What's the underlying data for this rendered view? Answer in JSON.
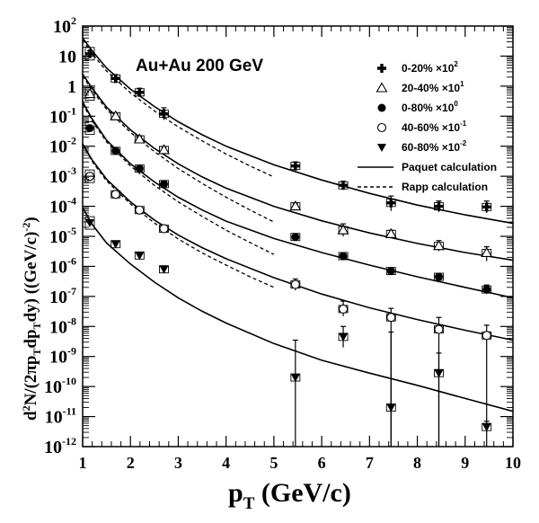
{
  "chart_data": {
    "type": "scatter",
    "title": "",
    "annotation": "Au+Au 200 GeV",
    "xlabel": {
      "main": "p",
      "sub": "T",
      "rest": " (GeV/c)"
    },
    "ylabel": {
      "parts": [
        {
          "t": "d",
          "s": "n"
        },
        {
          "t": "2",
          "s": "sup"
        },
        {
          "t": "N/(2π",
          "s": "n"
        },
        {
          "t": "p",
          "s": "n"
        },
        {
          "t": "T",
          "s": "sub"
        },
        {
          "t": "dp",
          "s": "n"
        },
        {
          "t": "T",
          "s": "sub"
        },
        {
          "t": "dy) ((GeV/c)",
          "s": "n"
        },
        {
          "t": "-2",
          "s": "sup"
        },
        {
          "t": ")",
          "s": "n"
        }
      ]
    },
    "xlim": [
      1,
      10
    ],
    "ylog": true,
    "ylim_exp": [
      -12,
      2
    ],
    "xticks": [
      "1",
      "2",
      "3",
      "4",
      "5",
      "6",
      "7",
      "8",
      "9",
      "10"
    ],
    "yticks": [
      {
        "base": "10",
        "exp": "2"
      },
      {
        "base": "10",
        "exp": ""
      },
      {
        "base": "1",
        "exp": ""
      },
      {
        "base": "10",
        "exp": "-1"
      },
      {
        "base": "10",
        "exp": "-2"
      },
      {
        "base": "10",
        "exp": "-3"
      },
      {
        "base": "10",
        "exp": "-4"
      },
      {
        "base": "10",
        "exp": "-5"
      },
      {
        "base": "10",
        "exp": "-6"
      },
      {
        "base": "10",
        "exp": "-7"
      },
      {
        "base": "10",
        "exp": "-8"
      },
      {
        "base": "10",
        "exp": "-9"
      },
      {
        "base": "10",
        "exp": "-10"
      },
      {
        "base": "10",
        "exp": "-11"
      },
      {
        "base": "10",
        "exp": "-12"
      }
    ],
    "legend_position": "top-right",
    "series": [
      {
        "name": "0-20%",
        "scale_base": "×10",
        "scale_exp": "2",
        "marker": "cross",
        "points": [
          {
            "x": 1.15,
            "y": 12,
            "lo": 9.5,
            "hi": 15
          },
          {
            "x": 1.69,
            "y": 1.8,
            "lo": 1.4,
            "hi": 2.4
          },
          {
            "x": 2.19,
            "y": 0.62,
            "lo": 0.48,
            "hi": 0.85
          },
          {
            "x": 2.7,
            "y": 0.12,
            "lo": 0.075,
            "hi": 0.19
          },
          {
            "x": 5.45,
            "y": 0.0022,
            "lo": 0.0017,
            "hi": 0.003
          },
          {
            "x": 6.45,
            "y": 0.0005,
            "lo": 0.00037,
            "hi": 0.00068
          },
          {
            "x": 7.45,
            "y": 0.00013,
            "lo": 7e-05,
            "hi": 0.00022
          },
          {
            "x": 8.45,
            "y": 0.0001,
            "lo": 6.5e-05,
            "hi": 0.00015
          },
          {
            "x": 9.45,
            "y": 9.5e-05,
            "lo": 6e-05,
            "hi": 0.00015
          }
        ]
      },
      {
        "name": "20-40%",
        "scale_base": "×10",
        "scale_exp": "1",
        "marker": "triangle-open",
        "points": [
          {
            "x": 1.15,
            "y": 0.55,
            "lo": 0.45,
            "hi": 0.68
          },
          {
            "x": 1.69,
            "y": 0.1,
            "lo": 0.085,
            "hi": 0.12
          },
          {
            "x": 2.19,
            "y": 0.017,
            "lo": 0.014,
            "hi": 0.021
          },
          {
            "x": 2.7,
            "y": 0.0075,
            "lo": 0.006,
            "hi": 0.0095
          },
          {
            "x": 5.45,
            "y": 0.0001,
            "lo": 8e-05,
            "hi": 0.00012
          },
          {
            "x": 6.45,
            "y": 1.6e-05,
            "lo": 1e-05,
            "hi": 2.6e-05
          },
          {
            "x": 7.45,
            "y": 1.2e-05,
            "lo": 9e-06,
            "hi": 1.6e-05
          },
          {
            "x": 8.45,
            "y": 4.8e-06,
            "lo": 3.2e-06,
            "hi": 7.2e-06
          },
          {
            "x": 9.45,
            "y": 2.8e-06,
            "lo": 1.5e-06,
            "hi": 4.5e-06
          }
        ]
      },
      {
        "name": "0-80%",
        "scale_base": "×10",
        "scale_exp": "0",
        "marker": "circle-filled",
        "points": [
          {
            "x": 1.15,
            "y": 0.04,
            "lo": 0.032,
            "hi": 0.05
          },
          {
            "x": 1.69,
            "y": 0.007,
            "lo": 0.0058,
            "hi": 0.0085
          },
          {
            "x": 2.19,
            "y": 0.0018,
            "lo": 0.0015,
            "hi": 0.0022
          },
          {
            "x": 2.7,
            "y": 0.00055,
            "lo": 0.00045,
            "hi": 0.00068
          },
          {
            "x": 5.45,
            "y": 9.5e-06,
            "lo": 8.2e-06,
            "hi": 1.1e-05
          },
          {
            "x": 6.45,
            "y": 2.2e-06,
            "lo": 1.9e-06,
            "hi": 2.6e-06
          },
          {
            "x": 7.45,
            "y": 7e-07,
            "lo": 5.5e-07,
            "hi": 8.8e-07
          },
          {
            "x": 8.45,
            "y": 4.5e-07,
            "lo": 3.6e-07,
            "hi": 5.5e-07
          },
          {
            "x": 9.45,
            "y": 1.7e-07,
            "lo": 1.2e-07,
            "hi": 2.4e-07
          }
        ]
      },
      {
        "name": "40-60%",
        "scale_base": "×10",
        "scale_exp": "-1",
        "marker": "circle-open",
        "points": [
          {
            "x": 1.15,
            "y": 0.001,
            "lo": 0.0008,
            "hi": 0.00125
          },
          {
            "x": 1.69,
            "y": 0.00025,
            "lo": 0.00021,
            "hi": 0.0003
          },
          {
            "x": 2.19,
            "y": 7.5e-05,
            "lo": 6.2e-05,
            "hi": 9e-05
          },
          {
            "x": 2.7,
            "y": 1.8e-05,
            "lo": 1.4e-05,
            "hi": 2.3e-05
          },
          {
            "x": 5.45,
            "y": 2.5e-07,
            "lo": 1.6e-07,
            "hi": 3.8e-07
          },
          {
            "x": 6.45,
            "y": 3.8e-08,
            "lo": 2.2e-08,
            "hi": 7e-08
          },
          {
            "x": 7.45,
            "y": 2e-08,
            "lo": 1e-12,
            "hi": 4e-08
          },
          {
            "x": 8.45,
            "y": 8e-09,
            "lo": 1e-12,
            "hi": 2e-08
          },
          {
            "x": 9.45,
            "y": 5e-09,
            "lo": 1e-12,
            "hi": 1.1e-08
          }
        ]
      },
      {
        "name": "60-80%",
        "scale_base": "×10",
        "scale_exp": "-2",
        "marker": "triangle-down-filled",
        "points": [
          {
            "x": 1.15,
            "y": 2.8e-05,
            "lo": 2.2e-05,
            "hi": 3.5e-05
          },
          {
            "x": 1.69,
            "y": 5.5e-06,
            "lo": 4.5e-06,
            "hi": 6.7e-06
          },
          {
            "x": 2.19,
            "y": 2.3e-06,
            "lo": 1.9e-06,
            "hi": 2.8e-06
          },
          {
            "x": 2.7,
            "y": 8e-07,
            "lo": 6.5e-07,
            "hi": 9.8e-07
          },
          {
            "x": 5.45,
            "y": 2e-10,
            "lo": 1e-12,
            "hi": 3.5e-09
          },
          {
            "x": 6.45,
            "y": 4.5e-09,
            "lo": 2e-09,
            "hi": 1e-08
          },
          {
            "x": 7.45,
            "y": 2e-11,
            "lo": 1e-12,
            "hi": 6.5e-09
          },
          {
            "x": 8.45,
            "y": 2.8e-10,
            "lo": 1e-12,
            "hi": 1.3e-09
          },
          {
            "x": 9.45,
            "y": 4.5e-12,
            "lo": 3e-12,
            "hi": 7e-12
          }
        ]
      }
    ],
    "curves": [
      {
        "name": "Paquet calculation",
        "style": "solid",
        "lines": [
          {
            "x": [
              1,
              1.2,
              1.5,
              2,
              2.5,
              3,
              3.5,
              4,
              5,
              6,
              7,
              8,
              9,
              10
            ],
            "y": [
              40,
              15,
              4,
              0.8,
              0.21,
              0.065,
              0.024,
              0.01,
              0.0024,
              0.00075,
              0.00027,
              0.00011,
              5.2e-05,
              2.7e-05
            ]
          },
          {
            "x": [
              1,
              1.2,
              1.5,
              2,
              2.5,
              3,
              3.5,
              4,
              5,
              6,
              7,
              8,
              9,
              10
            ],
            "y": [
              2.5,
              0.85,
              0.2,
              0.035,
              0.0085,
              0.0026,
              0.00095,
              0.0004,
              0.0001,
              3.3e-05,
              1.3e-05,
              5.8e-06,
              2.9e-06,
              1.6e-06
            ]
          },
          {
            "x": [
              1,
              1.2,
              1.5,
              2,
              2.5,
              3,
              3.5,
              4,
              5,
              6,
              7,
              8,
              9,
              10
            ],
            "y": [
              0.3,
              0.08,
              0.016,
              0.0026,
              0.00065,
              0.0002,
              7.5e-05,
              3.2e-05,
              8.5e-06,
              2.9e-06,
              1.1e-06,
              4.5e-07,
              2e-07,
              9e-08
            ]
          },
          {
            "x": [
              1,
              1.2,
              1.5,
              2,
              2.5,
              3,
              3.5,
              4,
              5,
              6,
              7,
              8,
              9,
              10
            ],
            "y": [
              0.012,
              0.0035,
              0.0008,
              0.00014,
              3.5e-05,
              1.1e-05,
              4.2e-06,
              1.8e-06,
              4.2e-07,
              1.2e-07,
              4.2e-08,
              1.7e-08,
              7.5e-09,
              3.5e-09
            ]
          },
          {
            "x": [
              1,
              1.2,
              1.5,
              2,
              2.5,
              3,
              3.5,
              4,
              5,
              6,
              7,
              8,
              9,
              10
            ],
            "y": [
              9e-05,
              2.5e-05,
              6e-06,
              1.2e-06,
              3e-07,
              9e-08,
              3.2e-08,
              1.3e-08,
              2.7e-09,
              7.5e-10,
              2.8e-10,
              1.1e-10,
              4e-11,
              1.5e-11
            ]
          }
        ]
      },
      {
        "name": "Rapp calculation",
        "style": "dashed",
        "lines": [
          {
            "x": [
              1,
              1.2,
              1.5,
              2,
              2.5,
              3,
              3.5,
              4,
              4.5,
              5
            ],
            "y": [
              35,
              12,
              3.2,
              0.6,
              0.15,
              0.044,
              0.015,
              0.0055,
              0.0022,
              0.00095
            ]
          },
          {
            "x": [
              1,
              1.2,
              1.5,
              2,
              2.5,
              3,
              3.5,
              4,
              4.5,
              5
            ],
            "y": [
              2.2,
              0.72,
              0.17,
              0.029,
              0.0066,
              0.0018,
              0.00058,
              0.0002,
              7.5e-05,
              3e-05
            ]
          },
          {
            "x": [
              1,
              1.2,
              1.5,
              2,
              2.5,
              3,
              3.5,
              4,
              4.5,
              5
            ],
            "y": [
              0.26,
              0.07,
              0.014,
              0.0022,
              0.0005,
              0.00014,
              4.6e-05,
              1.6e-05,
              6.2e-06,
              2.5e-06
            ]
          },
          {
            "x": [
              1,
              1.2,
              1.5,
              2,
              2.5,
              3,
              3.5,
              4,
              4.5,
              5
            ],
            "y": [
              0.011,
              0.0031,
              0.0007,
              0.00012,
              2.8e-05,
              8.2e-06,
              2.8e-06,
              1.1e-06,
              4.5e-07,
              2e-07
            ]
          }
        ]
      }
    ]
  }
}
